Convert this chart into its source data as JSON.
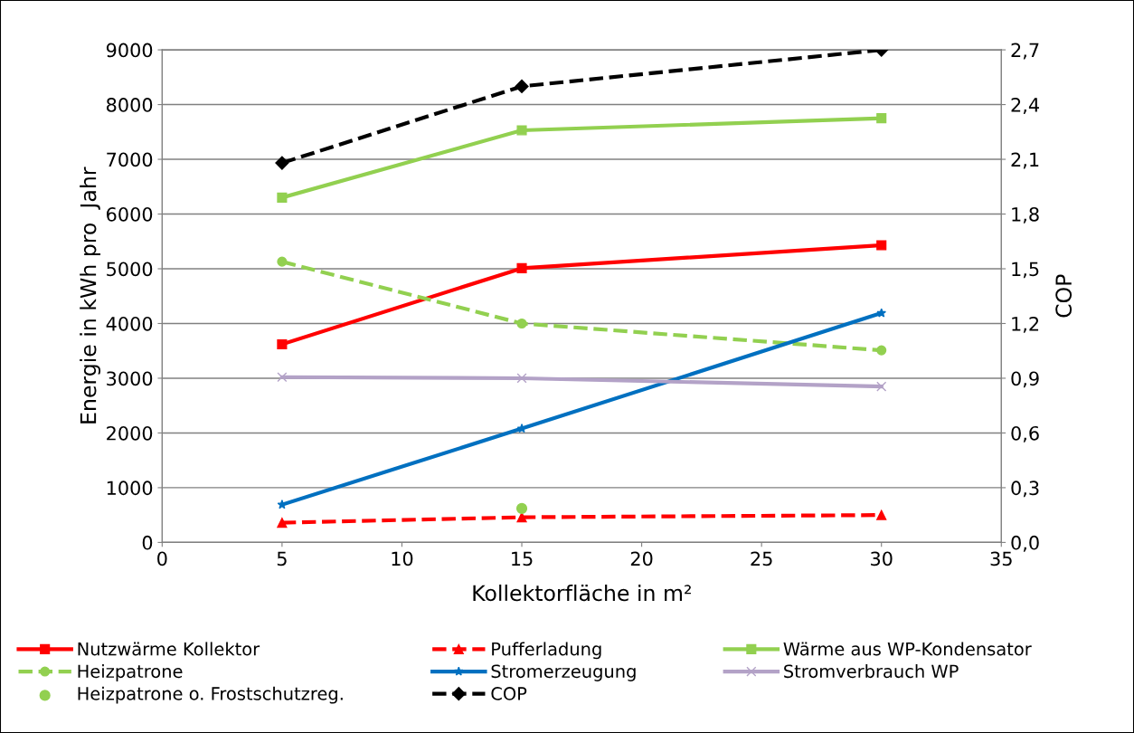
{
  "chart_data": {
    "type": "line",
    "xlabel": "Kollektorfläche in m²",
    "ylabel": "Energie in kWh pro  Jahr",
    "y2label": "COP",
    "x": [
      5,
      15,
      30
    ],
    "series": [
      {
        "name": "Nutzwärme Kollektor",
        "color": "#ff0000",
        "values": [
          3620,
          5010,
          5430
        ],
        "marker": "square",
        "line_style": "solid"
      },
      {
        "name": "Pufferladung",
        "color": "#ff0000",
        "values": [
          360,
          460,
          500
        ],
        "marker": "triangle",
        "line_style": "dashed"
      },
      {
        "name": "Wärme aus WP-Kondensator",
        "color": "#92d050",
        "values": [
          6300,
          7530,
          7750
        ],
        "marker": "square",
        "line_style": "solid"
      },
      {
        "name": "Heizpatrone",
        "color": "#92d050",
        "values": [
          5130,
          4000,
          3510
        ],
        "marker": "circle",
        "line_style": "dashed"
      },
      {
        "name": "Stromerzeugung",
        "color": "#0070c0",
        "values": [
          690,
          2080,
          4190
        ],
        "marker": "star",
        "line_style": "solid"
      },
      {
        "name": "Stromverbrauch WP",
        "color": "#b3a2c7",
        "values": [
          3020,
          3000,
          2850
        ],
        "marker": "cross",
        "line_style": "solid"
      },
      {
        "name": "Heizpatrone o. Frostschutzreg.",
        "type": "scatter",
        "color": "#92d050",
        "values": [
          null,
          620,
          null
        ],
        "marker": "circle"
      },
      {
        "name": "COP",
        "color": "#000000",
        "values": [
          2.08,
          2.5,
          2.7
        ],
        "marker": "diamond",
        "line_style": "dashed",
        "axis": "y2"
      }
    ],
    "xlim": [
      0,
      35
    ],
    "xticks": [
      0,
      5,
      10,
      15,
      20,
      25,
      30,
      35
    ],
    "ylim": [
      0,
      9000
    ],
    "yticks": [
      0,
      1000,
      2000,
      3000,
      4000,
      5000,
      6000,
      7000,
      8000,
      9000
    ],
    "y2lim": [
      0,
      2.7
    ],
    "y2ticks": [
      {
        "value": 0,
        "label": "0,0"
      },
      {
        "value": 0.3,
        "label": "0,3"
      },
      {
        "value": 0.6,
        "label": "0,6"
      },
      {
        "value": 0.9,
        "label": "0,9"
      },
      {
        "value": 1.2,
        "label": "1,2"
      },
      {
        "value": 1.5,
        "label": "1,5"
      },
      {
        "value": 1.8,
        "label": "1,8"
      },
      {
        "value": 2.1,
        "label": "2,1"
      },
      {
        "value": 2.4,
        "label": "2,4"
      },
      {
        "value": 2.7,
        "label": "2,7"
      }
    ],
    "grid": "y",
    "legend": "bottom"
  }
}
